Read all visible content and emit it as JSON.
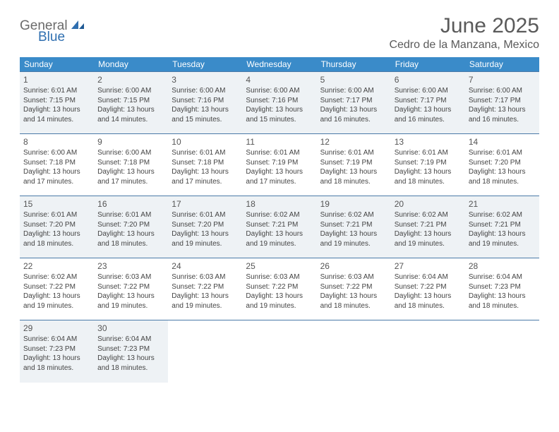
{
  "logo": {
    "part1": "General",
    "part2": "Blue"
  },
  "title": "June 2025",
  "location": "Cedro de la Manzana, Mexico",
  "colors": {
    "header_bg": "#3a8bc9",
    "header_text": "#ffffff",
    "shade_bg": "#eef2f5",
    "border": "#4a7aa8",
    "logo_gray": "#6b6b6b",
    "logo_blue": "#2f6fb0",
    "title_color": "#5a5a5a"
  },
  "weekdays": [
    "Sunday",
    "Monday",
    "Tuesday",
    "Wednesday",
    "Thursday",
    "Friday",
    "Saturday"
  ],
  "weeks": [
    [
      {
        "num": "1",
        "sunrise": "6:01 AM",
        "sunset": "7:15 PM",
        "daylight": "13 hours and 14 minutes."
      },
      {
        "num": "2",
        "sunrise": "6:00 AM",
        "sunset": "7:15 PM",
        "daylight": "13 hours and 14 minutes."
      },
      {
        "num": "3",
        "sunrise": "6:00 AM",
        "sunset": "7:16 PM",
        "daylight": "13 hours and 15 minutes."
      },
      {
        "num": "4",
        "sunrise": "6:00 AM",
        "sunset": "7:16 PM",
        "daylight": "13 hours and 15 minutes."
      },
      {
        "num": "5",
        "sunrise": "6:00 AM",
        "sunset": "7:17 PM",
        "daylight": "13 hours and 16 minutes."
      },
      {
        "num": "6",
        "sunrise": "6:00 AM",
        "sunset": "7:17 PM",
        "daylight": "13 hours and 16 minutes."
      },
      {
        "num": "7",
        "sunrise": "6:00 AM",
        "sunset": "7:17 PM",
        "daylight": "13 hours and 16 minutes."
      }
    ],
    [
      {
        "num": "8",
        "sunrise": "6:00 AM",
        "sunset": "7:18 PM",
        "daylight": "13 hours and 17 minutes."
      },
      {
        "num": "9",
        "sunrise": "6:00 AM",
        "sunset": "7:18 PM",
        "daylight": "13 hours and 17 minutes."
      },
      {
        "num": "10",
        "sunrise": "6:01 AM",
        "sunset": "7:18 PM",
        "daylight": "13 hours and 17 minutes."
      },
      {
        "num": "11",
        "sunrise": "6:01 AM",
        "sunset": "7:19 PM",
        "daylight": "13 hours and 17 minutes."
      },
      {
        "num": "12",
        "sunrise": "6:01 AM",
        "sunset": "7:19 PM",
        "daylight": "13 hours and 18 minutes."
      },
      {
        "num": "13",
        "sunrise": "6:01 AM",
        "sunset": "7:19 PM",
        "daylight": "13 hours and 18 minutes."
      },
      {
        "num": "14",
        "sunrise": "6:01 AM",
        "sunset": "7:20 PM",
        "daylight": "13 hours and 18 minutes."
      }
    ],
    [
      {
        "num": "15",
        "sunrise": "6:01 AM",
        "sunset": "7:20 PM",
        "daylight": "13 hours and 18 minutes."
      },
      {
        "num": "16",
        "sunrise": "6:01 AM",
        "sunset": "7:20 PM",
        "daylight": "13 hours and 18 minutes."
      },
      {
        "num": "17",
        "sunrise": "6:01 AM",
        "sunset": "7:20 PM",
        "daylight": "13 hours and 19 minutes."
      },
      {
        "num": "18",
        "sunrise": "6:02 AM",
        "sunset": "7:21 PM",
        "daylight": "13 hours and 19 minutes."
      },
      {
        "num": "19",
        "sunrise": "6:02 AM",
        "sunset": "7:21 PM",
        "daylight": "13 hours and 19 minutes."
      },
      {
        "num": "20",
        "sunrise": "6:02 AM",
        "sunset": "7:21 PM",
        "daylight": "13 hours and 19 minutes."
      },
      {
        "num": "21",
        "sunrise": "6:02 AM",
        "sunset": "7:21 PM",
        "daylight": "13 hours and 19 minutes."
      }
    ],
    [
      {
        "num": "22",
        "sunrise": "6:02 AM",
        "sunset": "7:22 PM",
        "daylight": "13 hours and 19 minutes."
      },
      {
        "num": "23",
        "sunrise": "6:03 AM",
        "sunset": "7:22 PM",
        "daylight": "13 hours and 19 minutes."
      },
      {
        "num": "24",
        "sunrise": "6:03 AM",
        "sunset": "7:22 PM",
        "daylight": "13 hours and 19 minutes."
      },
      {
        "num": "25",
        "sunrise": "6:03 AM",
        "sunset": "7:22 PM",
        "daylight": "13 hours and 19 minutes."
      },
      {
        "num": "26",
        "sunrise": "6:03 AM",
        "sunset": "7:22 PM",
        "daylight": "13 hours and 18 minutes."
      },
      {
        "num": "27",
        "sunrise": "6:04 AM",
        "sunset": "7:22 PM",
        "daylight": "13 hours and 18 minutes."
      },
      {
        "num": "28",
        "sunrise": "6:04 AM",
        "sunset": "7:23 PM",
        "daylight": "13 hours and 18 minutes."
      }
    ],
    [
      {
        "num": "29",
        "sunrise": "6:04 AM",
        "sunset": "7:23 PM",
        "daylight": "13 hours and 18 minutes."
      },
      {
        "num": "30",
        "sunrise": "6:04 AM",
        "sunset": "7:23 PM",
        "daylight": "13 hours and 18 minutes."
      },
      null,
      null,
      null,
      null,
      null
    ]
  ]
}
